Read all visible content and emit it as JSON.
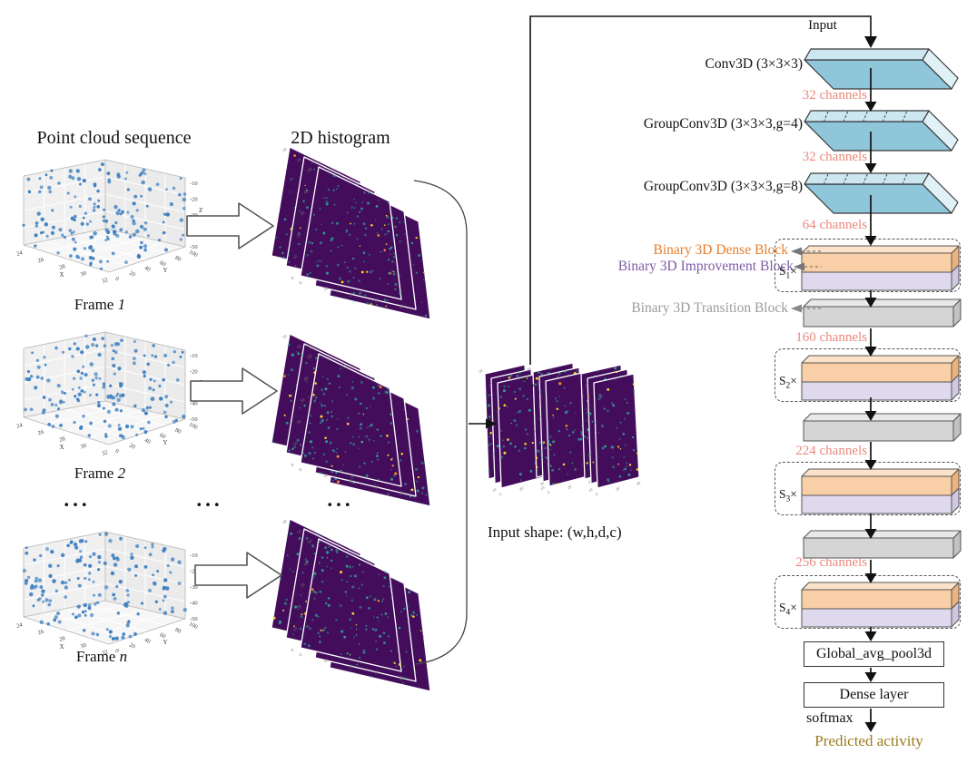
{
  "left": {
    "title": "Point cloud sequence",
    "frames": [
      {
        "prefix": "Frame ",
        "index": "1"
      },
      {
        "prefix": "Frame ",
        "index": "2"
      },
      {
        "prefix": "Frame ",
        "index": "n"
      }
    ],
    "axis": {
      "x": "X",
      "y": "Y",
      "z": "Z",
      "x_ticks": [
        "24",
        "26",
        "28",
        "30",
        "32"
      ],
      "y_ticks": [
        "0",
        "20",
        "40",
        "60",
        "80",
        "100"
      ],
      "z_ticks": [
        "-10",
        "-20",
        "-30",
        "-40",
        "-50"
      ]
    }
  },
  "ellipsis": "...",
  "middle": {
    "title": "2D histogram",
    "ticks": [
      "0",
      "10",
      "20",
      "30",
      "40",
      "50"
    ],
    "input_shape_label": "Input shape: (w,h,d,c)"
  },
  "network": {
    "input": "Input",
    "convs": [
      {
        "label": "Conv3D (3×3×3)",
        "channels": "32 channels",
        "dividers": 0
      },
      {
        "label": "GroupConv3D (3×3×3,g=4)",
        "channels": "32 channels",
        "dividers": 5
      },
      {
        "label": "GroupConv3D (3×3×3,g=8)",
        "channels": "64 channels",
        "dividers": 5
      }
    ],
    "legend": {
      "dense": "Binary 3D Dense Block",
      "improvement": "Binary 3D Improvement Block",
      "transition": "Binary 3D Transition Block"
    },
    "stages": [
      {
        "base": "S",
        "sub": "1",
        "suffix": "×"
      },
      {
        "base": "S",
        "sub": "2",
        "suffix": "×"
      },
      {
        "base": "S",
        "sub": "3",
        "suffix": "×"
      },
      {
        "base": "S",
        "sub": "4",
        "suffix": "×"
      }
    ],
    "transition_channels": [
      "160 channels",
      "224 channels",
      "256 channels"
    ],
    "head": {
      "pool": "Global_avg_pool3d",
      "dense": "Dense layer",
      "softmax": "softmax",
      "output": "Predicted activity"
    }
  },
  "colors": {
    "channels_text": "#e8897d",
    "dense_text": "#e87e2b",
    "improvement_text": "#7e5aa8",
    "transition_text": "#9c9c9c",
    "output_text": "#9a7b1d",
    "slab_top": "#cde7f0",
    "slab_front": "#8fc6da",
    "slab_side": "#e0f1f7",
    "orange_front": "#f9cfa7",
    "orange_top": "#fbe2c8",
    "orange_side": "#eeb27c",
    "purple_front": "#ded9ec",
    "purple_side": "#cfc8e2",
    "gray_front": "#d5d5d5",
    "gray_top": "#e9e9e9",
    "gray_side": "#c2c2c2",
    "hist_bg": "#430d5c",
    "hist_dot": "#2f9e94",
    "hist_dot_yellow": "#f4d525",
    "hist_dot_orange": "#ef8e2d",
    "scatter_dot": "#3c7ec0"
  }
}
